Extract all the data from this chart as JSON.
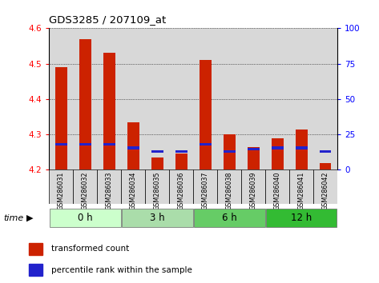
{
  "title": "GDS3285 / 207109_at",
  "samples": [
    "GSM286031",
    "GSM286032",
    "GSM286033",
    "GSM286034",
    "GSM286035",
    "GSM286036",
    "GSM286037",
    "GSM286038",
    "GSM286039",
    "GSM286040",
    "GSM286041",
    "GSM286042"
  ],
  "transformed_count": [
    4.49,
    4.57,
    4.53,
    4.335,
    4.235,
    4.245,
    4.51,
    4.3,
    4.265,
    4.29,
    4.315,
    4.22
  ],
  "percentile_rank_pos": [
    4.268,
    4.268,
    4.268,
    4.258,
    4.248,
    4.248,
    4.268,
    4.248,
    4.255,
    4.258,
    4.258,
    4.248
  ],
  "blue_bar_height": 0.008,
  "time_group_colors": [
    "#ccffcc",
    "#aaddaa",
    "#66cc66",
    "#33bb33"
  ],
  "time_group_labels": [
    "0 h",
    "3 h",
    "6 h",
    "12 h"
  ],
  "time_group_sizes": [
    3,
    3,
    3,
    3
  ],
  "bar_color": "#cc2200",
  "blue_color": "#2222cc",
  "ylim_left": [
    4.2,
    4.6
  ],
  "ylim_right": [
    0,
    100
  ],
  "yticks_left": [
    4.2,
    4.3,
    4.4,
    4.5,
    4.6
  ],
  "yticks_right": [
    0,
    25,
    50,
    75,
    100
  ],
  "bar_bottom": 4.2,
  "col_bg_color": "#d8d8d8",
  "bar_width": 0.5,
  "legend_red_label": "transformed count",
  "legend_blue_label": "percentile rank within the sample"
}
